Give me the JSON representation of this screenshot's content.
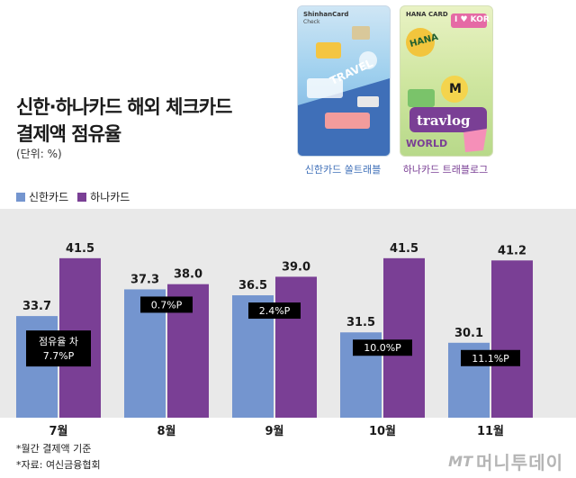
{
  "title_line1": "신한·하나카드 해외 체크카드",
  "title_line2": "결제액 점유율",
  "unit": "(단위: %)",
  "cards": {
    "shinhan": {
      "brand": "ShinhanCard",
      "sub": "Check",
      "word": "TRAVEL",
      "caption": "신한카드 쏠트래블"
    },
    "hana": {
      "brand": "HANA CARD",
      "sticker_hana": "HANA",
      "sticker_kor": "I ♥ KOR",
      "sticker_world": "WORLD",
      "word": "travlog",
      "caption": "하나카드 트래블로그"
    }
  },
  "legend": {
    "shinhan": "신한카드",
    "hana": "하나카드"
  },
  "colors": {
    "shinhan": "#7495cf",
    "hana": "#7a3f95",
    "chart_bg": "#e9e9e9",
    "diff_box": "#000000"
  },
  "chart_data": {
    "type": "bar",
    "categories": [
      "7월",
      "8월",
      "9월",
      "10월",
      "11월"
    ],
    "series": [
      {
        "name": "신한카드",
        "values": [
          33.7,
          37.3,
          36.5,
          31.5,
          30.1
        ]
      },
      {
        "name": "하나카드",
        "values": [
          41.5,
          38.0,
          39.0,
          41.5,
          41.2
        ]
      }
    ],
    "value_labels": {
      "shinhan": [
        "33.7",
        "37.3",
        "36.5",
        "31.5",
        "30.1"
      ],
      "hana": [
        "41.5",
        "38.0",
        "39.0",
        "41.5",
        "41.2"
      ]
    },
    "annotations": [
      {
        "line1": "점유율 차",
        "line2": "7.7%P"
      },
      {
        "line1": "",
        "line2": "0.7%P"
      },
      {
        "line1": "",
        "line2": "2.4%P"
      },
      {
        "line1": "",
        "line2": "10.0%P"
      },
      {
        "line1": "",
        "line2": "11.1%P"
      }
    ],
    "ylim": [
      20,
      45
    ],
    "grid": false,
    "legend_position": "top-left"
  },
  "footnotes": [
    "*월간 결제액 기준",
    "*자료: 여신금융협회"
  ],
  "watermark": {
    "mt": "MT",
    "name": "머니투데이"
  }
}
